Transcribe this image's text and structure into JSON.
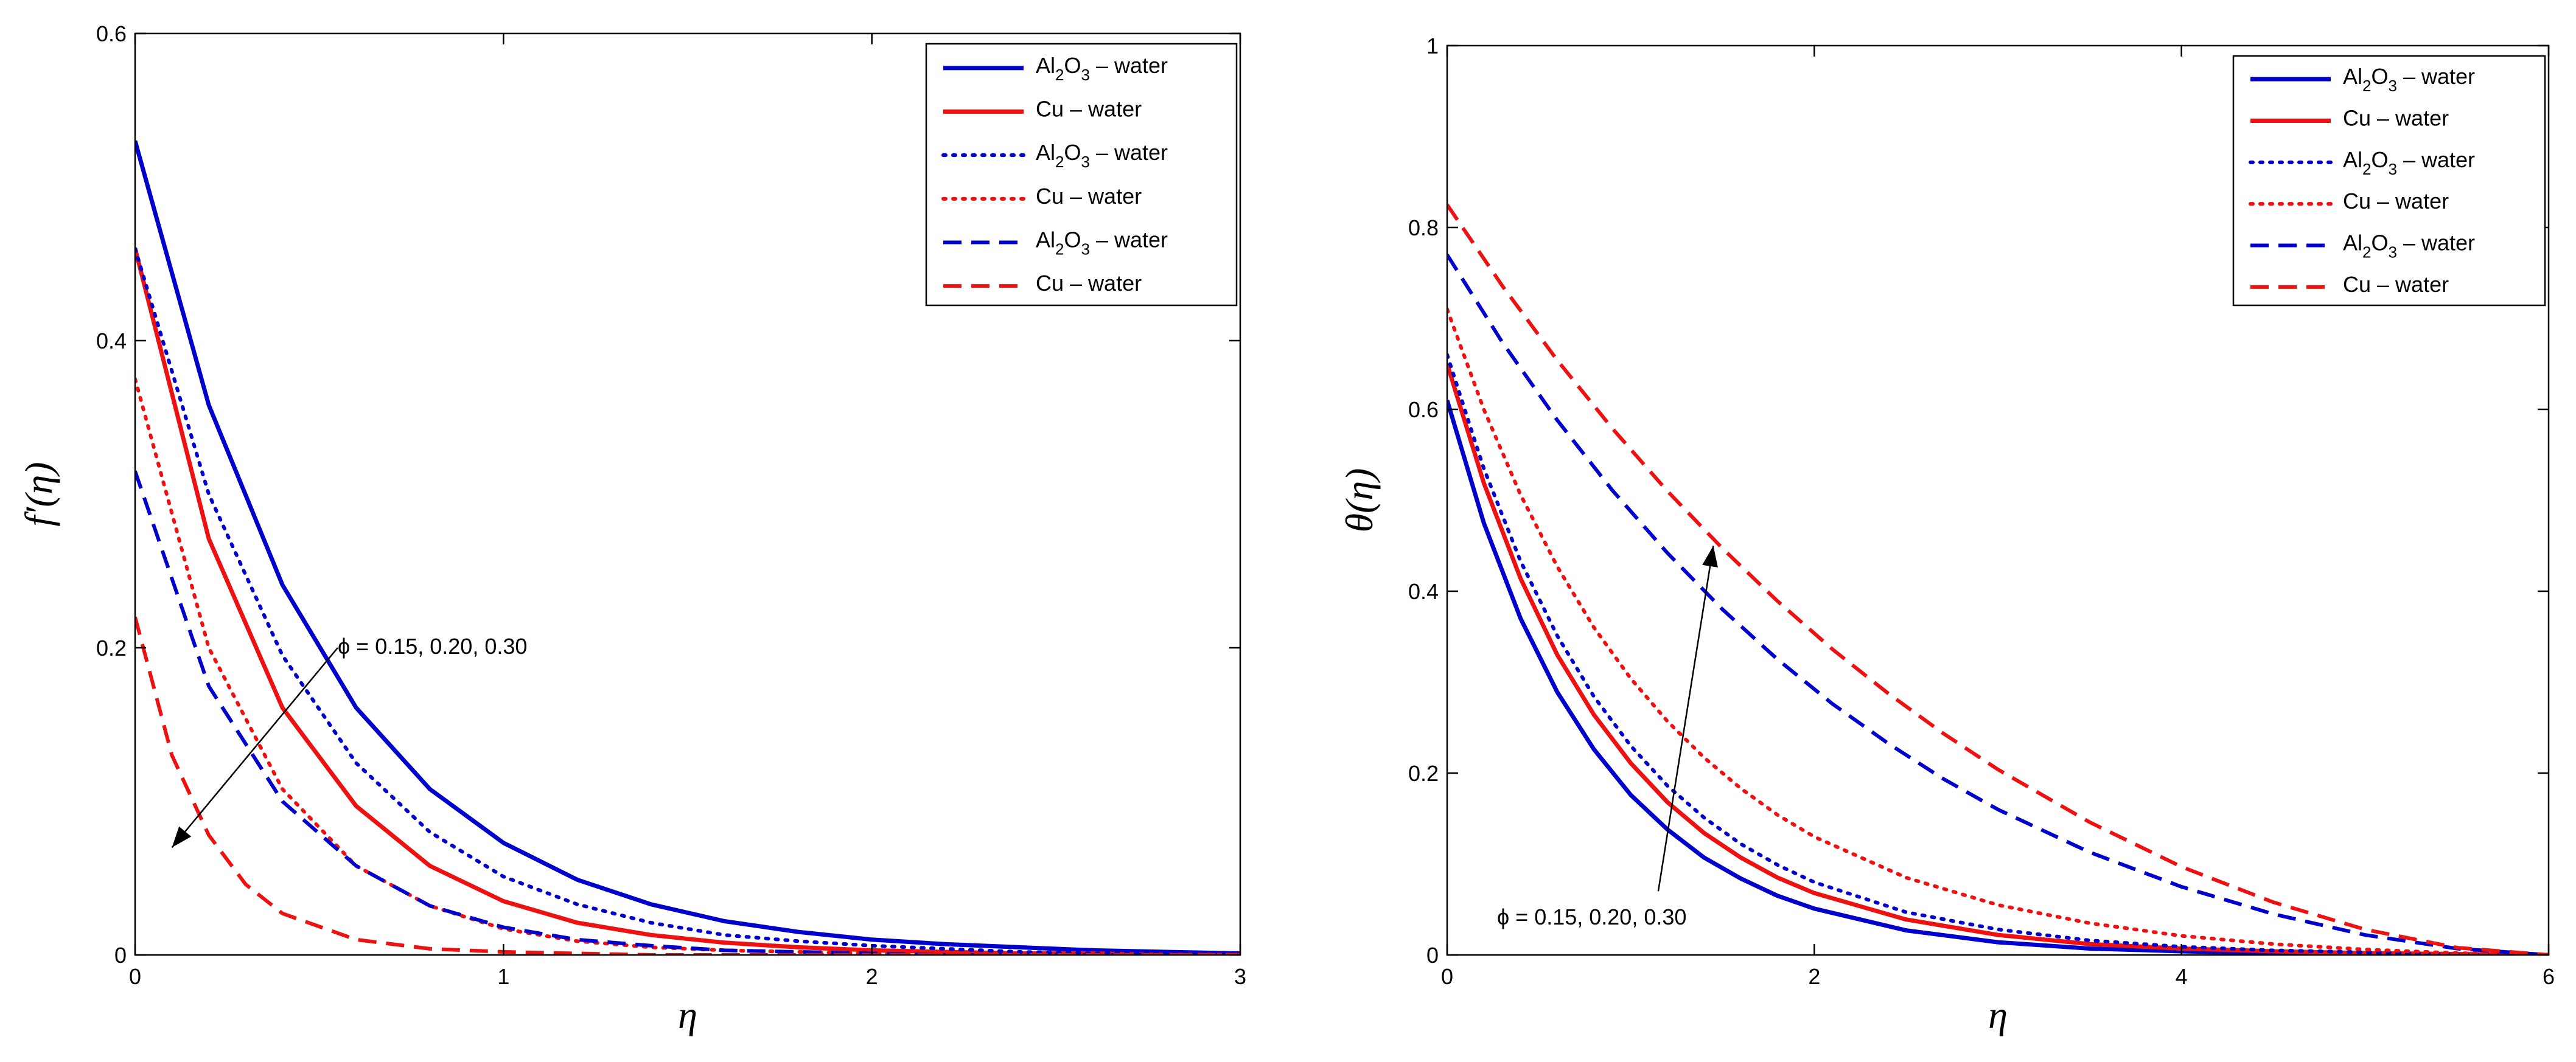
{
  "chart_data": [
    {
      "type": "line",
      "xlabel": "η",
      "ylabel": "f′(η)",
      "xlim": [
        0,
        3
      ],
      "ylim": [
        0,
        0.6
      ],
      "xticks": [
        0,
        1,
        2,
        3
      ],
      "yticks": [
        0,
        0.2,
        0.4,
        0.6
      ],
      "tick_labels_x": [
        "0",
        "1",
        "2",
        "3"
      ],
      "tick_labels_y": [
        "0",
        "0.2",
        "0.4",
        "0.6"
      ],
      "legend_position": "top-right",
      "annotation": {
        "text": "ϕ = 0.15, 0.20, 0.30",
        "arrow_from": [
          0.55,
          0.2
        ],
        "arrow_to": [
          0.1,
          0.07
        ]
      },
      "series": [
        {
          "name": "Al2O3 – water",
          "legend_main": "Al",
          "legend_sub1": "2",
          "legend_mid": "O",
          "legend_sub2": "3",
          "legend_rest": " – water",
          "color": "#0000cc",
          "style": "solid",
          "x": [
            0,
            0.2,
            0.4,
            0.6,
            0.8,
            1.0,
            1.2,
            1.4,
            1.6,
            1.8,
            2.0,
            2.2,
            2.4,
            2.6,
            2.8,
            3.0
          ],
          "y": [
            0.53,
            0.358,
            0.241,
            0.161,
            0.108,
            0.073,
            0.049,
            0.033,
            0.022,
            0.015,
            0.01,
            0.007,
            0.005,
            0.003,
            0.002,
            0.001
          ]
        },
        {
          "name": "Cu – water",
          "legend_main": "Cu – water",
          "color": "#ee1111",
          "style": "solid",
          "x": [
            0,
            0.2,
            0.4,
            0.6,
            0.8,
            1.0,
            1.2,
            1.4,
            1.6,
            1.8,
            2.0,
            2.2,
            2.4,
            2.6,
            2.8,
            3.0
          ],
          "y": [
            0.46,
            0.271,
            0.161,
            0.097,
            0.058,
            0.035,
            0.021,
            0.013,
            0.008,
            0.005,
            0.003,
            0.002,
            0.001,
            0.001,
            0.0,
            0.0
          ]
        },
        {
          "name": "Al2O3 – water",
          "legend_main": "Al",
          "legend_sub1": "2",
          "legend_mid": "O",
          "legend_sub2": "3",
          "legend_rest": " – water",
          "color": "#0000cc",
          "style": "dotted",
          "x": [
            0,
            0.2,
            0.4,
            0.6,
            0.8,
            1.0,
            1.2,
            1.4,
            1.6,
            1.8,
            2.0,
            2.2,
            2.4,
            2.6,
            2.8,
            3.0
          ],
          "y": [
            0.46,
            0.3,
            0.195,
            0.125,
            0.08,
            0.051,
            0.033,
            0.021,
            0.013,
            0.009,
            0.006,
            0.004,
            0.002,
            0.001,
            0.001,
            0.0
          ]
        },
        {
          "name": "Cu – water",
          "legend_main": "Cu – water",
          "color": "#ee1111",
          "style": "dotted",
          "x": [
            0,
            0.2,
            0.4,
            0.6,
            0.8,
            1.0,
            1.2,
            1.4,
            1.6,
            1.8,
            2.0,
            2.2,
            2.4,
            2.6,
            2.8,
            3.0
          ],
          "y": [
            0.375,
            0.2,
            0.108,
            0.058,
            0.032,
            0.017,
            0.009,
            0.005,
            0.003,
            0.002,
            0.001,
            0.0,
            0.0,
            0.0,
            0.0,
            0.0
          ]
        },
        {
          "name": "Al2O3 – water",
          "legend_main": "Al",
          "legend_sub1": "2",
          "legend_mid": "O",
          "legend_sub2": "3",
          "legend_rest": " – water",
          "color": "#0000cc",
          "style": "dashed",
          "x": [
            0,
            0.2,
            0.4,
            0.6,
            0.8,
            1.0,
            1.2,
            1.4,
            1.6,
            1.8,
            2.0,
            2.2,
            2.4,
            2.6,
            2.8,
            3.0
          ],
          "y": [
            0.315,
            0.175,
            0.1,
            0.058,
            0.032,
            0.018,
            0.01,
            0.006,
            0.003,
            0.002,
            0.001,
            0.0,
            0.0,
            0.0,
            0.0,
            0.0
          ]
        },
        {
          "name": "Cu – water",
          "legend_main": "Cu – water",
          "color": "#ee1111",
          "style": "dashed",
          "x": [
            0,
            0.1,
            0.2,
            0.3,
            0.4,
            0.6,
            0.8,
            1.0,
            1.2,
            1.4,
            1.6,
            1.8,
            2.0,
            2.4,
            3.0
          ],
          "y": [
            0.22,
            0.13,
            0.078,
            0.046,
            0.027,
            0.01,
            0.004,
            0.002,
            0.001,
            0.0,
            0.0,
            0.0,
            0.0,
            0.0,
            0.0
          ]
        }
      ]
    },
    {
      "type": "line",
      "xlabel": "η",
      "ylabel": "θ(η)",
      "xlim": [
        0,
        6
      ],
      "ylim": [
        0,
        1
      ],
      "xticks": [
        0,
        2,
        4,
        6
      ],
      "yticks": [
        0,
        0.2,
        0.4,
        0.6,
        0.8,
        1
      ],
      "tick_labels_x": [
        "0",
        "2",
        "4",
        "6"
      ],
      "tick_labels_y": [
        "0",
        "0.2",
        "0.4",
        "0.6",
        "0.8",
        "1"
      ],
      "legend_position": "top-right",
      "annotation": {
        "text": "ϕ = 0.15, 0.20, 0.30",
        "arrow_from": [
          1.15,
          0.07
        ],
        "arrow_to": [
          1.45,
          0.45
        ]
      },
      "series": [
        {
          "name": "Al2O3 – water",
          "legend_main": "Al",
          "legend_sub1": "2",
          "legend_mid": "O",
          "legend_sub2": "3",
          "legend_rest": " – water",
          "color": "#0000cc",
          "style": "solid",
          "x": [
            0,
            0.2,
            0.4,
            0.6,
            0.8,
            1.0,
            1.2,
            1.4,
            1.6,
            1.8,
            2.0,
            2.5,
            3.0,
            3.5,
            4.0,
            4.5,
            5.0,
            5.5,
            6.0
          ],
          "y": [
            0.61,
            0.475,
            0.37,
            0.289,
            0.226,
            0.176,
            0.138,
            0.107,
            0.084,
            0.065,
            0.051,
            0.027,
            0.014,
            0.007,
            0.004,
            0.002,
            0.001,
            0.0,
            0.0
          ]
        },
        {
          "name": "Cu – water",
          "legend_main": "Cu – water",
          "color": "#ee1111",
          "style": "solid",
          "x": [
            0,
            0.2,
            0.4,
            0.6,
            0.8,
            1.0,
            1.2,
            1.4,
            1.6,
            1.8,
            2.0,
            2.5,
            3.0,
            3.5,
            4.0,
            4.5,
            5.0,
            5.5,
            6.0
          ],
          "y": [
            0.65,
            0.519,
            0.414,
            0.33,
            0.264,
            0.211,
            0.168,
            0.134,
            0.107,
            0.085,
            0.068,
            0.039,
            0.022,
            0.012,
            0.007,
            0.004,
            0.002,
            0.001,
            0.0
          ]
        },
        {
          "name": "Al2O3 – water",
          "legend_main": "Al",
          "legend_sub1": "2",
          "legend_mid": "O",
          "legend_sub2": "3",
          "legend_rest": " – water",
          "color": "#0000cc",
          "style": "dotted",
          "x": [
            0,
            0.2,
            0.4,
            0.6,
            0.8,
            1.0,
            1.2,
            1.4,
            1.6,
            1.8,
            2.0,
            2.5,
            3.0,
            3.5,
            4.0,
            4.5,
            5.0,
            5.5,
            6.0
          ],
          "y": [
            0.66,
            0.535,
            0.433,
            0.351,
            0.284,
            0.23,
            0.186,
            0.151,
            0.122,
            0.099,
            0.08,
            0.047,
            0.028,
            0.016,
            0.009,
            0.005,
            0.003,
            0.001,
            0.0
          ]
        },
        {
          "name": "Cu – water",
          "legend_main": "Cu – water",
          "color": "#ee1111",
          "style": "dotted",
          "x": [
            0,
            0.2,
            0.4,
            0.6,
            0.8,
            1.0,
            1.2,
            1.4,
            1.6,
            1.8,
            2.0,
            2.5,
            3.0,
            3.5,
            4.0,
            4.5,
            5.0,
            5.5,
            6.0
          ],
          "y": [
            0.71,
            0.6,
            0.506,
            0.427,
            0.36,
            0.304,
            0.257,
            0.217,
            0.183,
            0.154,
            0.13,
            0.085,
            0.055,
            0.035,
            0.021,
            0.012,
            0.006,
            0.002,
            0.0
          ]
        },
        {
          "name": "Al2O3 – water",
          "legend_main": "Al",
          "legend_sub1": "2",
          "legend_mid": "O",
          "legend_sub2": "3",
          "legend_rest": " – water",
          "color": "#0000cc",
          "style": "dashed",
          "x": [
            0,
            0.3,
            0.6,
            0.9,
            1.2,
            1.5,
            1.8,
            2.1,
            2.4,
            2.7,
            3.0,
            3.5,
            4.0,
            4.5,
            5.0,
            5.5,
            6.0
          ],
          "y": [
            0.77,
            0.674,
            0.588,
            0.511,
            0.442,
            0.38,
            0.325,
            0.276,
            0.233,
            0.194,
            0.16,
            0.113,
            0.075,
            0.045,
            0.022,
            0.007,
            0.0
          ]
        },
        {
          "name": "Cu – water",
          "legend_main": "Cu – water",
          "color": "#ee1111",
          "style": "dashed",
          "x": [
            0,
            0.3,
            0.6,
            0.9,
            1.2,
            1.5,
            1.8,
            2.1,
            2.4,
            2.7,
            3.0,
            3.5,
            4.0,
            4.5,
            5.0,
            5.5,
            6.0
          ],
          "y": [
            0.825,
            0.736,
            0.654,
            0.579,
            0.51,
            0.447,
            0.389,
            0.336,
            0.288,
            0.244,
            0.204,
            0.146,
            0.097,
            0.058,
            0.028,
            0.008,
            0.0
          ]
        }
      ]
    }
  ]
}
